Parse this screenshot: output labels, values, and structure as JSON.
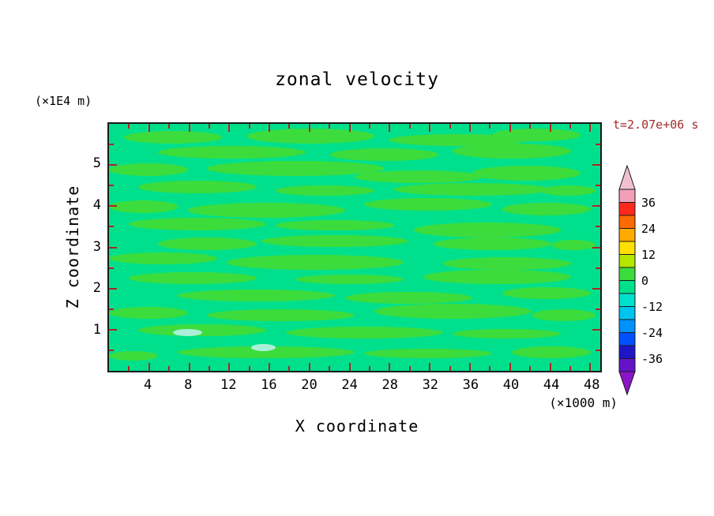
{
  "figure": {
    "title": "zonal velocity",
    "time_label": "t=2.07e+06 s",
    "y_axis_unit": "(×1E4 m)",
    "x_axis_unit": "(×1000 m)",
    "y_axis_label": "Z coordinate",
    "x_axis_label": "X coordinate"
  },
  "colors": {
    "frame": "#1a1a1a",
    "tick": "#b22222",
    "time_label": "#a52a2a",
    "text": "#000000",
    "plot_background": "#00e08c",
    "streak": "#3cdc3c",
    "pale_spot": "#aaf0d8"
  },
  "chart_data": {
    "type": "heatmap",
    "title": "zonal velocity",
    "xlabel": "X coordinate",
    "x_unit": "×1000 m",
    "ylabel": "Z coordinate",
    "y_unit": "×1E4 m",
    "time_annotation": "t=2.07e+06 s",
    "xlim": [
      0,
      49
    ],
    "ylim": [
      0,
      6
    ],
    "x_ticks_major": [
      4,
      8,
      12,
      16,
      20,
      24,
      28,
      32,
      36,
      40,
      44,
      48
    ],
    "x_tick_minor_step": 2,
    "y_ticks_major": [
      1,
      2,
      3,
      4,
      5
    ],
    "y_tick_minor_step": 0.5,
    "contour_interval": 6,
    "field_description": "Zonal velocity field with values mostly between -6 and +6 m/s: horizontal elongated streaks of the 0..+6 band (grass green) over a -6..0 background (spring green), with a few very weak pale patches near the bottom left.",
    "colorbar": {
      "labels": [
        "36",
        "24",
        "12",
        "0",
        "-12",
        "-24",
        "-36"
      ],
      "levels_top_to_bottom": [
        42,
        36,
        30,
        24,
        18,
        12,
        6,
        0,
        -6,
        -12,
        -18,
        -24,
        -30,
        -36,
        -42
      ],
      "band_colors_top_to_bottom": [
        "#f2a0b8",
        "#ff2a1e",
        "#ff6a00",
        "#ffaa00",
        "#ffe000",
        "#b4e600",
        "#3cdc3c",
        "#00e08c",
        "#00e0cf",
        "#00c4f0",
        "#0092ff",
        "#0050ff",
        "#1e14c8",
        "#6414c8"
      ],
      "arrow_top_color": "#f0c0d2",
      "arrow_bottom_color": "#8c14c8"
    },
    "streaks_pct": [
      [
        3,
        3,
        20,
        5
      ],
      [
        28,
        2,
        26,
        6
      ],
      [
        57,
        4,
        28,
        5
      ],
      [
        78,
        2,
        18,
        5
      ],
      [
        10,
        9,
        30,
        5
      ],
      [
        45,
        10,
        22,
        5
      ],
      [
        70,
        8,
        24,
        6
      ],
      [
        0,
        16,
        16,
        5
      ],
      [
        20,
        15,
        36,
        6
      ],
      [
        50,
        19,
        26,
        5
      ],
      [
        74,
        17,
        22,
        6
      ],
      [
        6,
        23,
        24,
        5
      ],
      [
        34,
        25,
        20,
        4
      ],
      [
        58,
        24,
        32,
        5
      ],
      [
        88,
        25,
        11,
        4
      ],
      [
        0,
        31,
        14,
        5
      ],
      [
        16,
        32,
        32,
        6
      ],
      [
        52,
        30,
        26,
        5
      ],
      [
        80,
        32,
        18,
        5
      ],
      [
        4,
        38,
        28,
        5
      ],
      [
        34,
        39,
        24,
        4
      ],
      [
        62,
        40,
        30,
        6
      ],
      [
        10,
        46,
        20,
        5
      ],
      [
        31,
        45,
        30,
        5
      ],
      [
        66,
        46,
        24,
        5
      ],
      [
        90,
        47,
        9,
        4
      ],
      [
        0,
        52,
        22,
        5
      ],
      [
        24,
        53,
        36,
        6
      ],
      [
        68,
        54,
        26,
        5
      ],
      [
        4,
        60,
        26,
        5
      ],
      [
        38,
        61,
        22,
        4
      ],
      [
        64,
        59,
        30,
        6
      ],
      [
        14,
        67,
        32,
        5
      ],
      [
        48,
        68,
        26,
        5
      ],
      [
        80,
        66,
        18,
        5
      ],
      [
        0,
        74,
        16,
        5
      ],
      [
        20,
        75,
        30,
        5
      ],
      [
        54,
        73,
        32,
        6
      ],
      [
        86,
        75,
        13,
        5
      ],
      [
        6,
        81,
        26,
        5
      ],
      [
        36,
        82,
        32,
        5
      ],
      [
        70,
        83,
        22,
        4
      ],
      [
        14,
        90,
        36,
        5
      ],
      [
        52,
        91,
        26,
        4
      ],
      [
        82,
        90,
        16,
        5
      ],
      [
        0,
        92,
        10,
        4
      ]
    ],
    "pale_spots_pct": [
      [
        13,
        83,
        6,
        3
      ],
      [
        29,
        89,
        5,
        3
      ]
    ]
  }
}
